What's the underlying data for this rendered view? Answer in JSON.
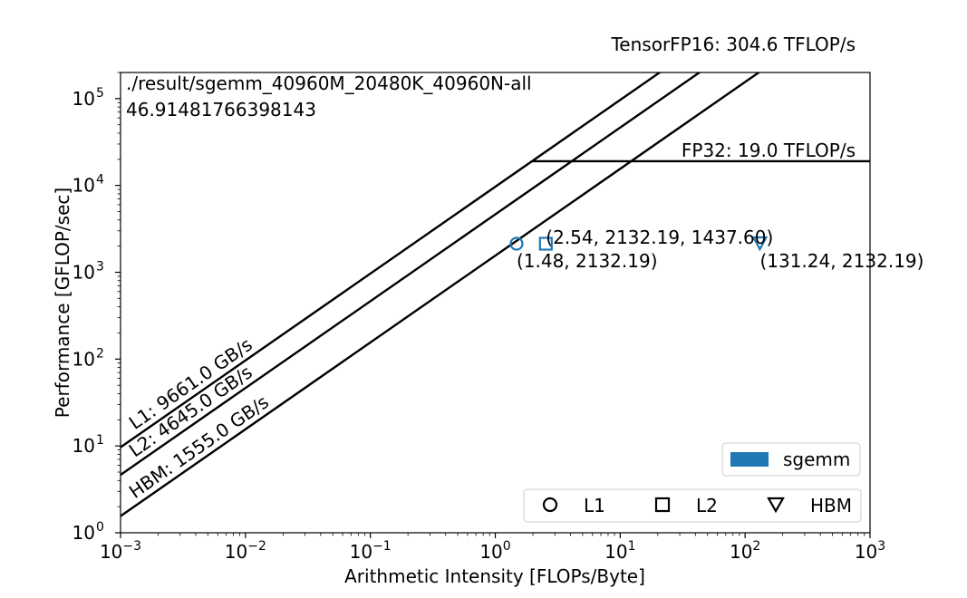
{
  "chart_data": {
    "type": "scatter",
    "xlabel": "Arithmetic Intensity [FLOPs/Byte]",
    "ylabel": "Performance [GFLOP/sec]",
    "xscale": "log",
    "yscale": "log",
    "xlim": [
      0.001,
      1000
    ],
    "ylim": [
      1,
      200000
    ],
    "grid": false,
    "x_ticks": [
      {
        "base": "10",
        "exp": "−3",
        "value": 0.001
      },
      {
        "base": "10",
        "exp": "−2",
        "value": 0.01
      },
      {
        "base": "10",
        "exp": "−1",
        "value": 0.1
      },
      {
        "base": "10",
        "exp": "0",
        "value": 1
      },
      {
        "base": "10",
        "exp": "1",
        "value": 10
      },
      {
        "base": "10",
        "exp": "2",
        "value": 100
      },
      {
        "base": "10",
        "exp": "3",
        "value": 1000
      }
    ],
    "y_ticks": [
      {
        "base": "10",
        "exp": "0",
        "value": 1
      },
      {
        "base": "10",
        "exp": "1",
        "value": 10
      },
      {
        "base": "10",
        "exp": "2",
        "value": 100
      },
      {
        "base": "10",
        "exp": "3",
        "value": 1000
      },
      {
        "base": "10",
        "exp": "4",
        "value": 10000
      },
      {
        "base": "10",
        "exp": "5",
        "value": 100000
      }
    ],
    "text_top_right": "TensorFP16: 304.6 TFLOP/s",
    "text_top_left": [
      "./result/sgemm_40960M_20480K_40960N-all",
      "46.91481766398143"
    ],
    "compute_roof": {
      "label": "FP32: 19.0 TFLOP/s",
      "gflops": 19000
    },
    "memory_roofs": [
      {
        "label": "L1: 9661.0 GB/s",
        "bandwidth": 9661
      },
      {
        "label": "L2: 4645.0 GB/s",
        "bandwidth": 4645
      },
      {
        "label": "HBM: 1555.0 GB/s",
        "bandwidth": 1555
      }
    ],
    "points": [
      {
        "level": "L1",
        "marker": "circle",
        "x": 1.48,
        "y": 2132.19,
        "label": "(1.48, 2132.19)"
      },
      {
        "level": "L2",
        "marker": "square",
        "x": 2.54,
        "y": 2132.19,
        "label": "(2.54, 2132.19, 1437.60)"
      },
      {
        "level": "HBM",
        "marker": "triangle-down",
        "x": 131.24,
        "y": 2132.19,
        "label": "(131.24, 2132.19)"
      }
    ],
    "point_color": "#1f77b4",
    "legend_kernels": [
      {
        "name": "sgemm",
        "color": "#1f77b4"
      }
    ],
    "legend_kernels_location": "lower-right",
    "legend_levels": [
      {
        "name": "L1",
        "marker": "circle"
      },
      {
        "name": "L2",
        "marker": "square"
      },
      {
        "name": "HBM",
        "marker": "triangle-down"
      }
    ],
    "legend_levels_location": "bottom-right"
  }
}
